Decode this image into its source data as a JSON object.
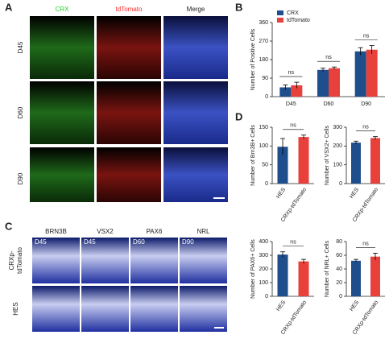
{
  "panel_labels": [
    "A",
    "B",
    "C",
    "D"
  ],
  "panel_a": {
    "columns": [
      "CRX",
      "tdTomato",
      "Merge"
    ],
    "rows": [
      "D45",
      "D60",
      "D90"
    ]
  },
  "panel_c": {
    "columns": [
      "BRN3B",
      "VSX2",
      "PAX6",
      "NRL"
    ],
    "stages": [
      "D45",
      "D45",
      "D60",
      "D90"
    ],
    "rows": [
      [
        "CRXp-",
        "tdTomato"
      ],
      [
        "HES"
      ]
    ]
  },
  "chart_data": [
    {
      "type": "bar",
      "ylabel": "Number of Positive Cells",
      "categories": [
        "D45",
        "D60",
        "D90"
      ],
      "series": [
        {
          "name": "CRX",
          "color": "#1f4e8c",
          "values": [
            45,
            130,
            220
          ],
          "errors": [
            12,
            8,
            18
          ]
        },
        {
          "name": "tdTomato",
          "color": "#e8413c",
          "values": [
            55,
            138,
            228
          ],
          "errors": [
            15,
            6,
            20
          ]
        }
      ],
      "ylim": [
        0,
        360
      ],
      "yticks": [
        0,
        90,
        180,
        270,
        360
      ],
      "legend": "top-left",
      "annotations": [
        "ns",
        "ns",
        "ns"
      ]
    },
    {
      "type": "bar",
      "ylabel": "Number of Brn3B+ Cells",
      "categories": [
        "HES",
        "CRXp-tdTomato"
      ],
      "values": [
        98,
        124
      ],
      "errors": [
        22,
        5
      ],
      "colors": [
        "#1f4e8c",
        "#e8413c"
      ],
      "ylim": [
        0,
        150
      ],
      "yticks": [
        0,
        50,
        100,
        150
      ],
      "annotations": [
        "ns"
      ]
    },
    {
      "type": "bar",
      "ylabel": "Number of VSX2+ Cells",
      "categories": [
        "HES",
        "CRXp-tdTomato"
      ],
      "values": [
        218,
        242
      ],
      "errors": [
        8,
        8
      ],
      "colors": [
        "#1f4e8c",
        "#e8413c"
      ],
      "ylim": [
        0,
        300
      ],
      "yticks": [
        0,
        100,
        200,
        300
      ],
      "annotations": [
        "ns"
      ]
    },
    {
      "type": "bar",
      "ylabel": "Number of PAX6+ Cells",
      "categories": [
        "HES",
        "CRXp-tdTomato"
      ],
      "values": [
        305,
        255
      ],
      "errors": [
        20,
        15
      ],
      "colors": [
        "#1f4e8c",
        "#e8413c"
      ],
      "ylim": [
        0,
        400
      ],
      "yticks": [
        0,
        100,
        200,
        300,
        400
      ],
      "annotations": [
        "ns"
      ]
    },
    {
      "type": "bar",
      "ylabel": "Number of NRL+ Cells",
      "categories": [
        "HES",
        "CRXp-tdTomato"
      ],
      "values": [
        52,
        58
      ],
      "errors": [
        2,
        5
      ],
      "colors": [
        "#1f4e8c",
        "#e8413c"
      ],
      "ylim": [
        0,
        80
      ],
      "yticks": [
        0,
        20,
        40,
        60,
        80
      ],
      "annotations": [
        "ns"
      ]
    }
  ]
}
